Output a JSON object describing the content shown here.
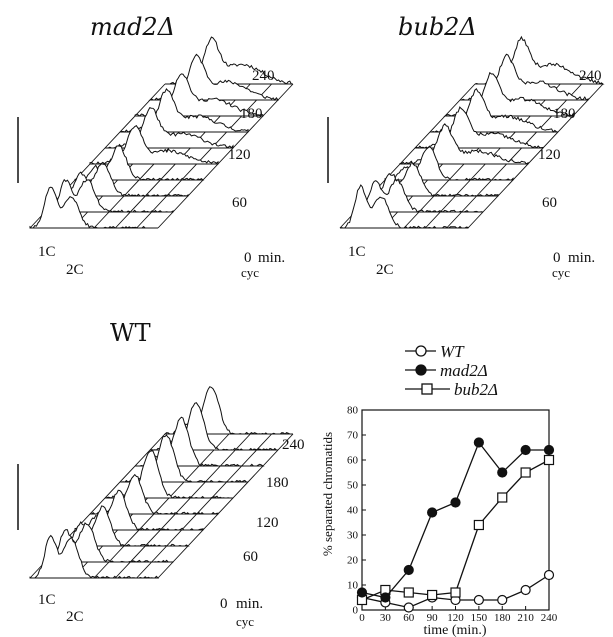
{
  "panels": [
    {
      "title": "mad2Δ",
      "dna_peaks": [
        "1C",
        "2C"
      ],
      "time_labels": [
        "0",
        "60",
        "120",
        "180",
        "240"
      ],
      "time_unit": "min.",
      "cyc_label": "cyc",
      "traces": [
        "cyc",
        "0",
        "30",
        "60",
        "90",
        "120",
        "150",
        "180",
        "210",
        "240"
      ]
    },
    {
      "title": "bub2Δ",
      "dna_peaks": [
        "1C",
        "2C"
      ],
      "time_labels": [
        "0",
        "60",
        "120",
        "180",
        "240"
      ],
      "time_unit": "min.",
      "cyc_label": "cyc",
      "traces": [
        "cyc",
        "0",
        "30",
        "60",
        "90",
        "120",
        "150",
        "180",
        "210",
        "240"
      ]
    },
    {
      "title": "WT",
      "dna_peaks": [
        "1C",
        "2C"
      ],
      "time_labels": [
        "0",
        "60",
        "120",
        "180",
        "240"
      ],
      "time_unit": "min.",
      "cyc_label": "cyc",
      "traces": [
        "cyc",
        "0",
        "30",
        "60",
        "90",
        "120",
        "150",
        "180",
        "210",
        "240"
      ]
    }
  ],
  "chart_data": {
    "type": "line",
    "xlabel": "time (min.)",
    "ylabel": "% separated chromatids",
    "x": [
      0,
      30,
      60,
      90,
      120,
      150,
      180,
      210,
      240
    ],
    "xlim": [
      0,
      240
    ],
    "ylim": [
      0,
      80
    ],
    "yticks": [
      0,
      10,
      20,
      30,
      40,
      50,
      60,
      70,
      80
    ],
    "grid": false,
    "legend_position": "top-left, above plot",
    "series": [
      {
        "name": "WT",
        "marker": "open-circle",
        "values": [
          5,
          3,
          1,
          5,
          4,
          4,
          4,
          8,
          14
        ]
      },
      {
        "name": "mad2Δ",
        "marker": "filled-circle",
        "values": [
          7,
          5,
          16,
          39,
          43,
          67,
          55,
          64,
          64
        ]
      },
      {
        "name": "bub2Δ",
        "marker": "open-square",
        "values": [
          4,
          8,
          7,
          6,
          7,
          34,
          45,
          55,
          60
        ]
      }
    ]
  }
}
